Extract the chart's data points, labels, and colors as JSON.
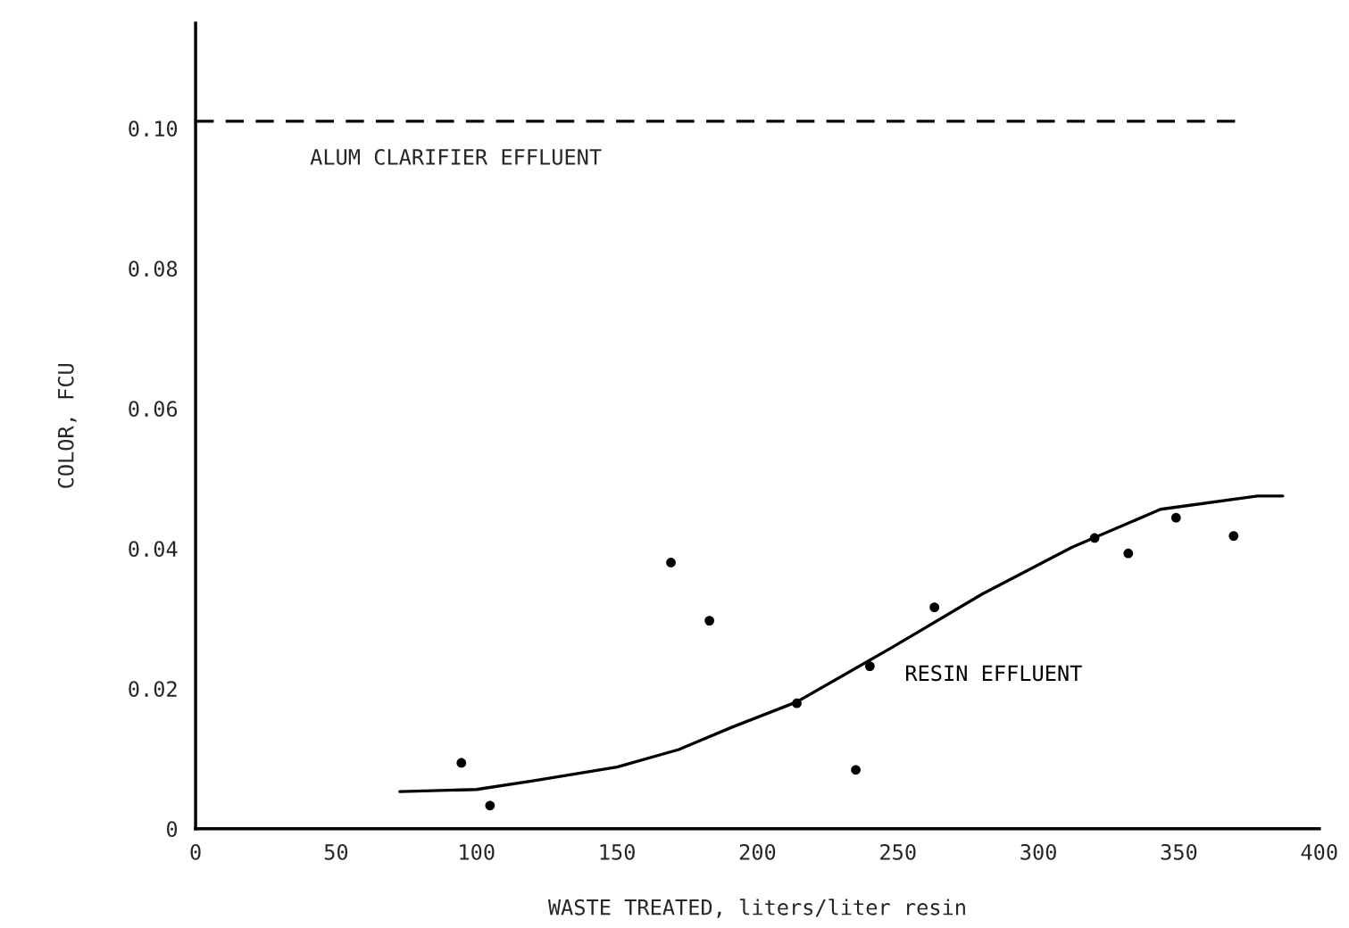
{
  "chart_data": {
    "type": "scatter",
    "xlabel": "WASTE TREATED, liters/liter resin",
    "ylabel": "COLOR, FCU",
    "xlim": [
      0,
      400
    ],
    "ylim": [
      0,
      0.115
    ],
    "xticks": [
      0,
      50,
      100,
      150,
      200,
      250,
      300,
      350,
      400
    ],
    "yticks": [
      0,
      {
        "value": 0.02,
        "label": "0.02"
      },
      {
        "value": 0.04,
        "label": "0.04"
      },
      {
        "value": 0.06,
        "label": "0.06"
      },
      {
        "value": 0.08,
        "label": "0.08"
      },
      {
        "value": 0.1,
        "label": "0.10"
      }
    ],
    "grid": false,
    "legend": false,
    "series": [
      {
        "color": "#000000",
        "marker": "circle",
        "x": [
          94.6,
          104.8,
          169.2,
          182.9,
          214,
          235,
          240,
          263,
          320,
          332,
          349,
          369.5
        ],
        "values": [
          0.0094,
          0.0033,
          0.038,
          0.0297,
          0.0179,
          0.0084,
          0.0232,
          0.0316,
          0.0415,
          0.0393,
          0.0444,
          0.0418
        ]
      },
      {
        "type": "line",
        "name": "RESIN EFFLUENT",
        "color": "#000000",
        "line_style": "solid",
        "marker": "none",
        "x": [
          72.7,
          100,
          121,
          150,
          172,
          191,
          214,
          248,
          280,
          312,
          343.5,
          378,
          387
        ],
        "values": [
          0.0053,
          0.0056,
          0.0069,
          0.0088,
          0.0113,
          0.0145,
          0.0181,
          0.0259,
          0.0335,
          0.0402,
          0.0456,
          0.0475,
          0.0475
        ]
      },
      {
        "type": "line",
        "name": "ALUM CLARIFIER EFFLUENT",
        "color": "#000000",
        "line_style": "dashed",
        "marker": "none",
        "x": [
          0,
          370
        ],
        "values": [
          0.101,
          0.101
        ]
      }
    ]
  }
}
